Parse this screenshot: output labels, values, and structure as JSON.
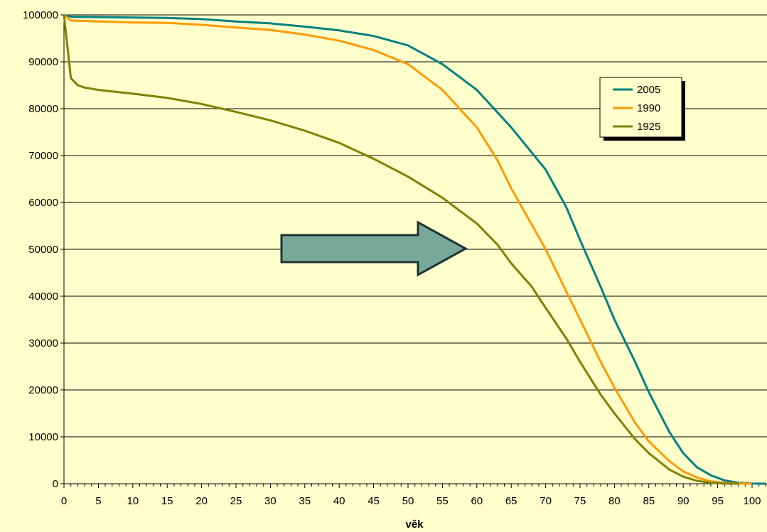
{
  "chart_data": {
    "type": "line",
    "title": "",
    "xlabel": "věk",
    "ylabel": "",
    "xlim": [
      0,
      102
    ],
    "ylim": [
      0,
      100000
    ],
    "x_ticks": [
      0,
      5,
      10,
      15,
      20,
      25,
      30,
      35,
      40,
      45,
      50,
      55,
      60,
      65,
      70,
      75,
      80,
      85,
      90,
      95,
      100
    ],
    "y_ticks": [
      0,
      10000,
      20000,
      30000,
      40000,
      50000,
      60000,
      70000,
      80000,
      90000,
      100000
    ],
    "grid": "horizontal",
    "legend_position": "top-right",
    "series": [
      {
        "name": "2005",
        "color": "#008080",
        "points": [
          [
            0,
            100000
          ],
          [
            1,
            99600
          ],
          [
            5,
            99550
          ],
          [
            10,
            99450
          ],
          [
            15,
            99350
          ],
          [
            20,
            99100
          ],
          [
            25,
            98600
          ],
          [
            30,
            98200
          ],
          [
            35,
            97500
          ],
          [
            40,
            96700
          ],
          [
            45,
            95500
          ],
          [
            50,
            93500
          ],
          [
            55,
            89500
          ],
          [
            60,
            84000
          ],
          [
            65,
            76000
          ],
          [
            70,
            67000
          ],
          [
            73,
            59000
          ],
          [
            75,
            52000
          ],
          [
            78,
            42000
          ],
          [
            80,
            35000
          ],
          [
            83,
            26000
          ],
          [
            85,
            19500
          ],
          [
            88,
            11000
          ],
          [
            90,
            6500
          ],
          [
            92,
            3500
          ],
          [
            94,
            1800
          ],
          [
            96,
            700
          ],
          [
            98,
            200
          ],
          [
            100,
            50
          ],
          [
            102,
            0
          ]
        ]
      },
      {
        "name": "1990",
        "color": "#ff9900",
        "points": [
          [
            0,
            100000
          ],
          [
            1,
            98800
          ],
          [
            5,
            98600
          ],
          [
            10,
            98400
          ],
          [
            15,
            98300
          ],
          [
            20,
            97900
          ],
          [
            25,
            97300
          ],
          [
            30,
            96800
          ],
          [
            35,
            95800
          ],
          [
            40,
            94500
          ],
          [
            45,
            92500
          ],
          [
            50,
            89500
          ],
          [
            55,
            84000
          ],
          [
            60,
            76000
          ],
          [
            63,
            69000
          ],
          [
            65,
            63000
          ],
          [
            70,
            50000
          ],
          [
            75,
            35000
          ],
          [
            78,
            26000
          ],
          [
            80,
            20500
          ],
          [
            83,
            13000
          ],
          [
            85,
            9000
          ],
          [
            88,
            4800
          ],
          [
            90,
            2600
          ],
          [
            92,
            1300
          ],
          [
            94,
            500
          ],
          [
            96,
            200
          ],
          [
            98,
            50
          ],
          [
            100,
            10
          ]
        ]
      },
      {
        "name": "1925",
        "color": "#808000",
        "points": [
          [
            0,
            100000
          ],
          [
            1,
            86500
          ],
          [
            2,
            85000
          ],
          [
            3,
            84500
          ],
          [
            5,
            84000
          ],
          [
            10,
            83200
          ],
          [
            15,
            82300
          ],
          [
            20,
            81000
          ],
          [
            25,
            79300
          ],
          [
            30,
            77500
          ],
          [
            35,
            75300
          ],
          [
            40,
            72700
          ],
          [
            45,
            69300
          ],
          [
            50,
            65500
          ],
          [
            55,
            61000
          ],
          [
            60,
            55500
          ],
          [
            63,
            51000
          ],
          [
            65,
            47000
          ],
          [
            68,
            42000
          ],
          [
            70,
            37500
          ],
          [
            73,
            31000
          ],
          [
            75,
            26000
          ],
          [
            78,
            19000
          ],
          [
            80,
            15000
          ],
          [
            83,
            9500
          ],
          [
            85,
            6500
          ],
          [
            88,
            3000
          ],
          [
            90,
            1500
          ],
          [
            92,
            600
          ],
          [
            94,
            200
          ],
          [
            96,
            50
          ],
          [
            98,
            0
          ]
        ]
      }
    ]
  }
}
